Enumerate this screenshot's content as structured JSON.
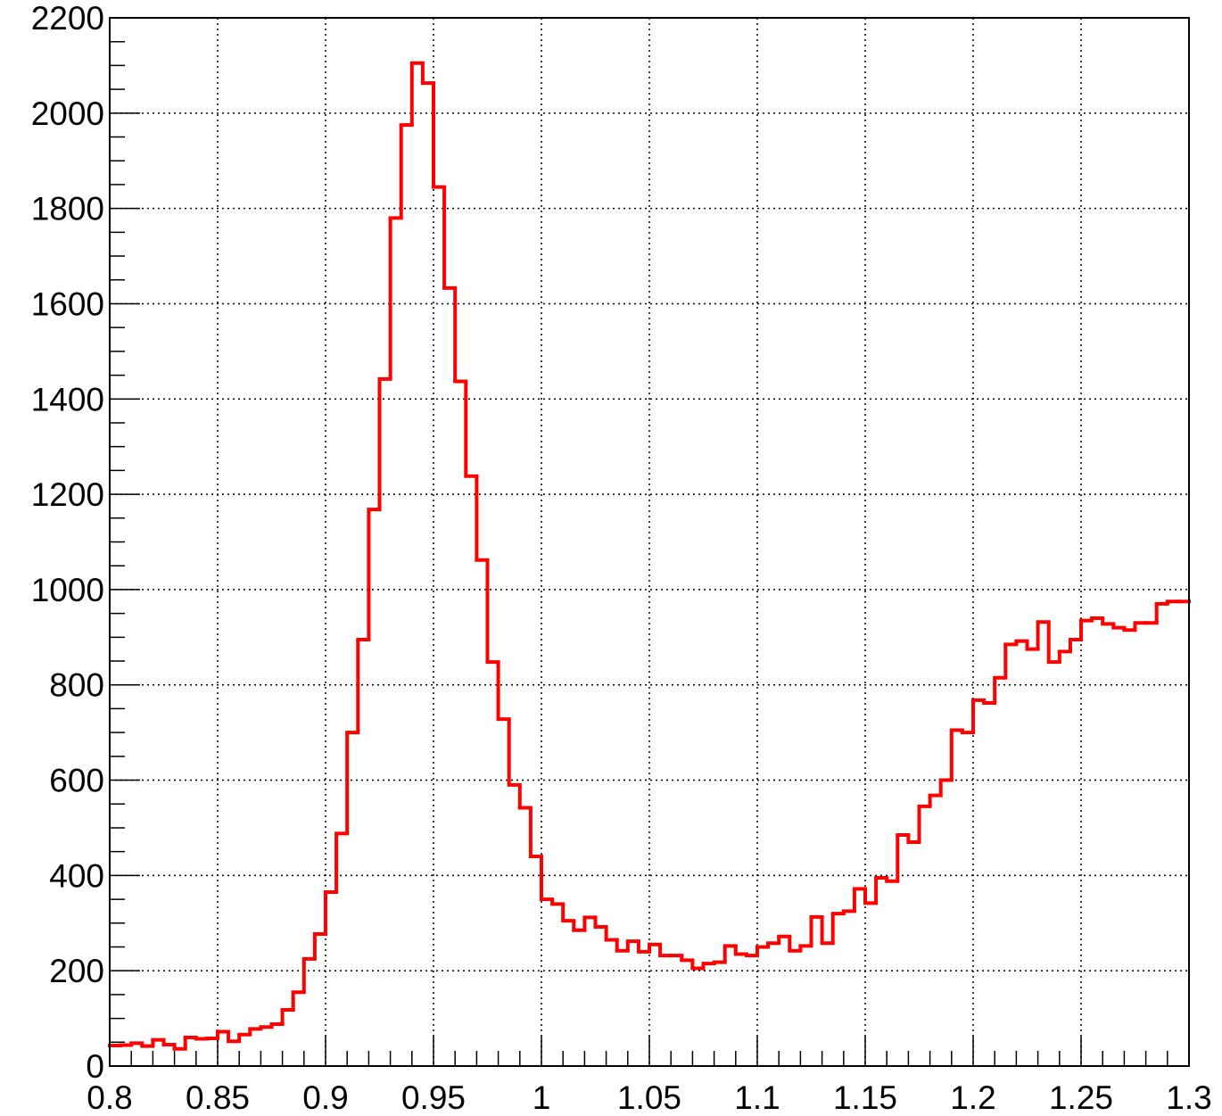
{
  "chart_data": {
    "type": "histogram",
    "bins": [
      0.8,
      0.805,
      0.81,
      0.815,
      0.82,
      0.825,
      0.83,
      0.835,
      0.84,
      0.845,
      0.85,
      0.855,
      0.86,
      0.865,
      0.87,
      0.875,
      0.88,
      0.885,
      0.89,
      0.895,
      0.9,
      0.905,
      0.91,
      0.915,
      0.92,
      0.925,
      0.93,
      0.935,
      0.94,
      0.945,
      0.95,
      0.955,
      0.96,
      0.965,
      0.97,
      0.975,
      0.98,
      0.985,
      0.99,
      0.995,
      1.0,
      1.005,
      1.01,
      1.015,
      1.02,
      1.025,
      1.03,
      1.035,
      1.04,
      1.045,
      1.05,
      1.055,
      1.06,
      1.065,
      1.07,
      1.075,
      1.08,
      1.085,
      1.09,
      1.095,
      1.1,
      1.105,
      1.11,
      1.115,
      1.12,
      1.125,
      1.13,
      1.135,
      1.14,
      1.145,
      1.15,
      1.155,
      1.16,
      1.165,
      1.17,
      1.175,
      1.18,
      1.185,
      1.19,
      1.195,
      1.2,
      1.205,
      1.21,
      1.215,
      1.22,
      1.225,
      1.23,
      1.235,
      1.24,
      1.245,
      1.25,
      1.255,
      1.26,
      1.265,
      1.27,
      1.275,
      1.28,
      1.285,
      1.29,
      1.295,
      1.3
    ],
    "values": [
      43,
      44,
      48,
      42,
      55,
      45,
      36,
      60,
      57,
      58,
      72,
      52,
      66,
      78,
      82,
      88,
      118,
      155,
      225,
      277,
      365,
      488,
      700,
      895,
      1168,
      1442,
      1780,
      1975,
      2105,
      2063,
      1845,
      1633,
      1437,
      1238,
      1062,
      848,
      728,
      590,
      542,
      440,
      350,
      340,
      305,
      285,
      312,
      292,
      265,
      242,
      262,
      240,
      255,
      232,
      232,
      222,
      205,
      215,
      218,
      252,
      235,
      232,
      250,
      258,
      272,
      242,
      252,
      313,
      258,
      320,
      325,
      372,
      342,
      395,
      388,
      485,
      470,
      545,
      568,
      600,
      705,
      700,
      768,
      762,
      815,
      885,
      892,
      875,
      932,
      848,
      870,
      895,
      935,
      940,
      928,
      920,
      915,
      930,
      930,
      970,
      975,
      975
    ],
    "color": "#ff0000",
    "xlim": [
      0.8,
      1.3
    ],
    "xticks": [
      {
        "value": 0.8,
        "label": "0.8"
      },
      0.85,
      {
        "value": 0.9,
        "label": "0.9"
      },
      0.95,
      1,
      1.05,
      {
        "value": 1.1,
        "label": "1.1"
      },
      1.15,
      {
        "value": 1.2,
        "label": "1.2"
      },
      1.25,
      {
        "value": 1.3,
        "label": "1.3"
      }
    ],
    "ylim": [
      0,
      2200
    ],
    "yticks": [
      0,
      200,
      400,
      600,
      800,
      1000,
      1200,
      1400,
      1600,
      1800,
      2000,
      2200
    ],
    "grid": true
  }
}
